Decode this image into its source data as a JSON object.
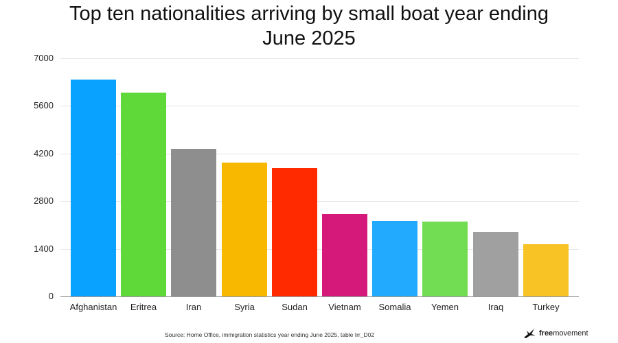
{
  "chart_data": {
    "type": "bar",
    "title": "Top ten nationalities arriving by small boat year ending June 2025",
    "title_lines": [
      "Top ten nationalities arriving by small boat year ending",
      "June 2025"
    ],
    "xlabel": "",
    "ylabel": "",
    "ylim": [
      0,
      7000
    ],
    "yticks": [
      0,
      1400,
      2800,
      4200,
      5600,
      7000
    ],
    "grid": true,
    "legend": null,
    "categories": [
      "Afghanistan",
      "Eritrea",
      "Iran",
      "Syria",
      "Sudan",
      "Vietnam",
      "Somalia",
      "Yemen",
      "Iraq",
      "Turkey"
    ],
    "values": [
      6380,
      5990,
      4330,
      3930,
      3770,
      2420,
      2210,
      2190,
      1900,
      1530
    ],
    "colors": [
      "#0aa2ff",
      "#5fd93a",
      "#8e8e8e",
      "#f9b800",
      "#ff2a00",
      "#d4197a",
      "#22aaff",
      "#72dd52",
      "#a0a0a0",
      "#f7c325"
    ]
  },
  "footer": {
    "source": "Source: Home Office, immigration statistics year ending June 2025, table Irr_D02",
    "logo_bold": "free",
    "logo_rest": "movement"
  }
}
